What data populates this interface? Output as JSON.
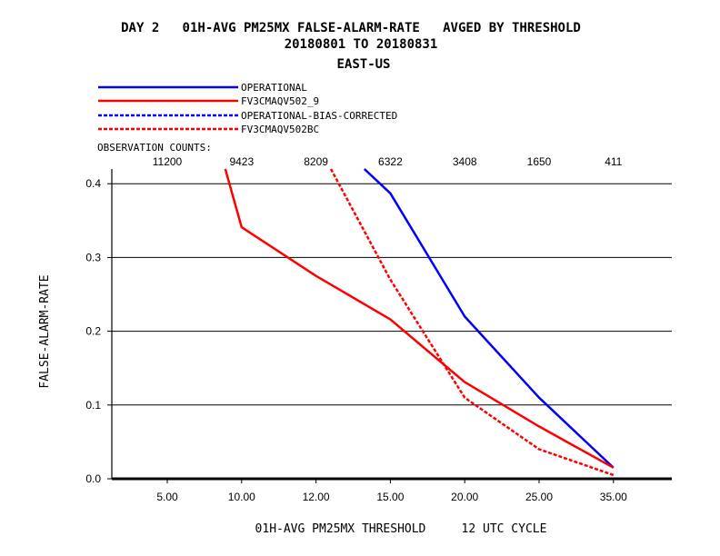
{
  "chart_data": {
    "type": "line",
    "title_lines": [
      "DAY 2   01H-AVG PM25MX FALSE-ALARM-RATE   AVGED BY THRESHOLD",
      "20180801 TO 20180831",
      "EAST-US"
    ],
    "xlabel": "01H-AVG PM25MX THRESHOLD     12 UTC CYCLE",
    "ylabel": "FALSE-ALARM-RATE",
    "categories": [
      "5.00",
      "10.00",
      "12.00",
      "15.00",
      "20.00",
      "25.00",
      "35.00"
    ],
    "ylim": [
      0,
      0.42
    ],
    "y_ticks": [
      "0.0",
      "0.1",
      "0.2",
      "0.3",
      "0.4"
    ],
    "grid": "horizontal",
    "obs_counts_label": "OBSERVATION COUNTS:",
    "obs_counts": [
      "11200",
      "9423",
      "8209",
      "6322",
      "3408",
      "1650",
      "411"
    ],
    "legend_position": "top-left",
    "series": [
      {
        "name": "OPERATIONAL",
        "color": "#0000ff",
        "dash": "solid",
        "points": [
          [
            2.65,
            0.42
          ],
          [
            3.0,
            0.387
          ],
          [
            4.0,
            0.22
          ],
          [
            5.0,
            0.11
          ],
          [
            6.0,
            0.015
          ]
        ]
      },
      {
        "name": "FV3CMAQV502_9",
        "color": "#ff0000",
        "dash": "solid",
        "points": [
          [
            0.78,
            0.42
          ],
          [
            1.0,
            0.341
          ],
          [
            2.0,
            0.275
          ],
          [
            3.0,
            0.216
          ],
          [
            4.0,
            0.131
          ],
          [
            5.0,
            0.071
          ],
          [
            6.0,
            0.015
          ]
        ]
      },
      {
        "name": "OPERATIONAL-BIAS-CORRECTED",
        "color": "#0000ff",
        "dash": "dashed",
        "points": []
      },
      {
        "name": "FV3CMAQV502BC",
        "color": "#ff0000",
        "dash": "dashed",
        "points": [
          [
            2.2,
            0.42
          ],
          [
            3.0,
            0.27
          ],
          [
            4.0,
            0.11
          ],
          [
            5.0,
            0.04
          ],
          [
            6.0,
            0.005
          ]
        ]
      }
    ]
  }
}
